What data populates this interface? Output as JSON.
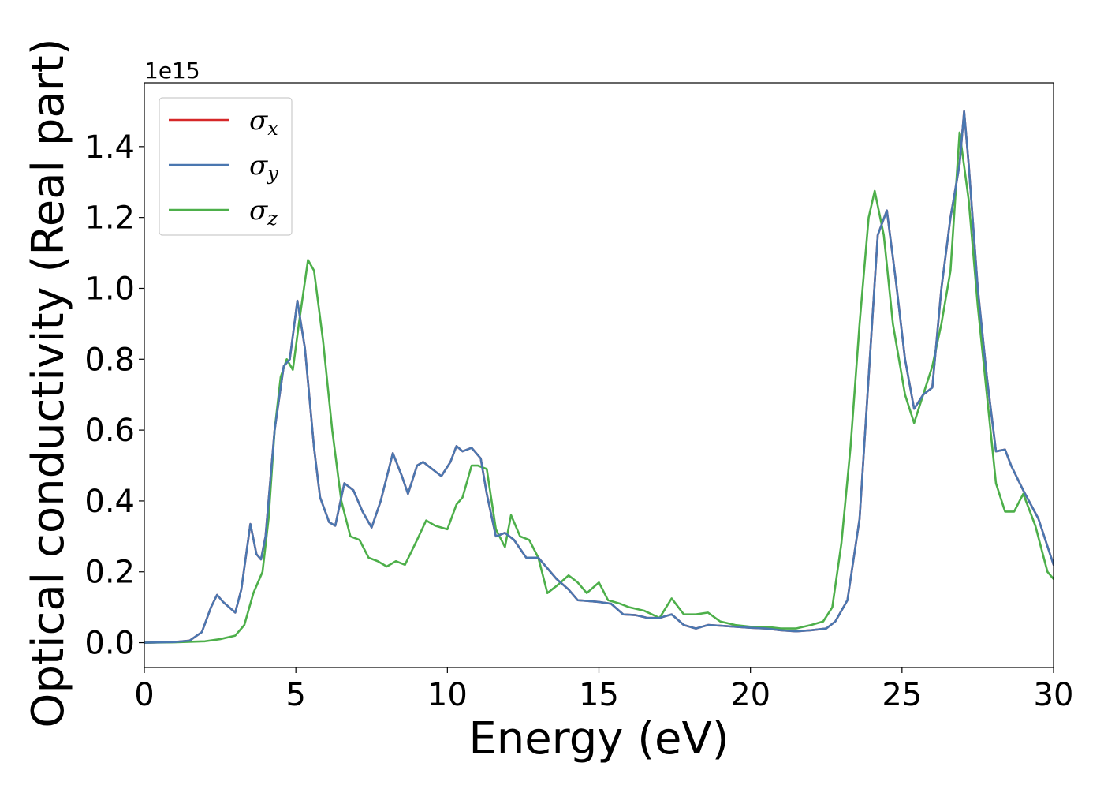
{
  "chart_data": {
    "type": "line",
    "xlabel": "Energy (eV)",
    "ylabel": "Optical conductivity (Real part)",
    "y_offset_label": "1e15",
    "xlim": [
      0,
      30
    ],
    "ylim": [
      -0.07,
      1.58
    ],
    "x_ticks": [
      0,
      5,
      10,
      15,
      20,
      25,
      30
    ],
    "x_tick_labels": [
      "0",
      "5",
      "10",
      "15",
      "20",
      "25",
      "30"
    ],
    "y_ticks": [
      0.0,
      0.2,
      0.4,
      0.6,
      0.8,
      1.0,
      1.2,
      1.4
    ],
    "y_tick_labels": [
      "0.0",
      "0.2",
      "0.4",
      "0.6",
      "0.8",
      "1.0",
      "1.2",
      "1.4"
    ],
    "grid": false,
    "legend_position": "top-left",
    "series": [
      {
        "name": "σx",
        "legend_symbol": "σ",
        "legend_subscript": "x",
        "color": "#d62728",
        "points": [
          [
            0,
            0
          ],
          [
            1,
            0.002
          ],
          [
            1.5,
            0.006
          ],
          [
            1.9,
            0.03
          ],
          [
            2.2,
            0.1
          ],
          [
            2.4,
            0.135
          ],
          [
            2.6,
            0.115
          ],
          [
            3.0,
            0.085
          ],
          [
            3.2,
            0.15
          ],
          [
            3.5,
            0.335
          ],
          [
            3.7,
            0.25
          ],
          [
            3.85,
            0.235
          ],
          [
            4.0,
            0.3
          ],
          [
            4.3,
            0.6
          ],
          [
            4.6,
            0.78
          ],
          [
            4.8,
            0.8
          ],
          [
            5.05,
            0.965
          ],
          [
            5.3,
            0.83
          ],
          [
            5.6,
            0.55
          ],
          [
            5.8,
            0.41
          ],
          [
            6.1,
            0.34
          ],
          [
            6.3,
            0.33
          ],
          [
            6.6,
            0.45
          ],
          [
            6.9,
            0.43
          ],
          [
            7.2,
            0.37
          ],
          [
            7.5,
            0.325
          ],
          [
            7.8,
            0.4
          ],
          [
            8.2,
            0.535
          ],
          [
            8.5,
            0.47
          ],
          [
            8.7,
            0.42
          ],
          [
            9.0,
            0.5
          ],
          [
            9.2,
            0.51
          ],
          [
            9.5,
            0.49
          ],
          [
            9.8,
            0.47
          ],
          [
            10.1,
            0.51
          ],
          [
            10.3,
            0.555
          ],
          [
            10.5,
            0.54
          ],
          [
            10.8,
            0.55
          ],
          [
            11.1,
            0.52
          ],
          [
            11.3,
            0.42
          ],
          [
            11.6,
            0.3
          ],
          [
            11.9,
            0.31
          ],
          [
            12.2,
            0.29
          ],
          [
            12.6,
            0.24
          ],
          [
            13.0,
            0.24
          ],
          [
            13.3,
            0.21
          ],
          [
            13.6,
            0.18
          ],
          [
            14.0,
            0.15
          ],
          [
            14.3,
            0.12
          ],
          [
            14.6,
            0.118
          ],
          [
            15.0,
            0.115
          ],
          [
            15.4,
            0.11
          ],
          [
            15.8,
            0.08
          ],
          [
            16.2,
            0.078
          ],
          [
            16.6,
            0.07
          ],
          [
            17.0,
            0.07
          ],
          [
            17.4,
            0.08
          ],
          [
            17.8,
            0.05
          ],
          [
            18.2,
            0.04
          ],
          [
            18.6,
            0.05
          ],
          [
            19.0,
            0.048
          ],
          [
            19.5,
            0.045
          ],
          [
            20.0,
            0.042
          ],
          [
            20.5,
            0.04
          ],
          [
            21.0,
            0.035
          ],
          [
            21.5,
            0.032
          ],
          [
            22.0,
            0.035
          ],
          [
            22.5,
            0.04
          ],
          [
            22.8,
            0.06
          ],
          [
            23.2,
            0.12
          ],
          [
            23.6,
            0.35
          ],
          [
            23.9,
            0.75
          ],
          [
            24.2,
            1.15
          ],
          [
            24.5,
            1.22
          ],
          [
            24.8,
            1.02
          ],
          [
            25.1,
            0.8
          ],
          [
            25.4,
            0.66
          ],
          [
            25.7,
            0.7
          ],
          [
            26.0,
            0.72
          ],
          [
            26.3,
            1.0
          ],
          [
            26.6,
            1.2
          ],
          [
            26.9,
            1.35
          ],
          [
            27.05,
            1.5
          ],
          [
            27.2,
            1.35
          ],
          [
            27.5,
            1.0
          ],
          [
            27.8,
            0.75
          ],
          [
            28.1,
            0.54
          ],
          [
            28.4,
            0.545
          ],
          [
            28.6,
            0.5
          ],
          [
            29.0,
            0.43
          ],
          [
            29.5,
            0.35
          ],
          [
            30.0,
            0.22
          ]
        ]
      },
      {
        "name": "σy",
        "legend_symbol": "σ",
        "legend_subscript": "y",
        "color": "#4a77b0",
        "points": [
          [
            0,
            0
          ],
          [
            1,
            0.002
          ],
          [
            1.5,
            0.006
          ],
          [
            1.9,
            0.03
          ],
          [
            2.2,
            0.1
          ],
          [
            2.4,
            0.135
          ],
          [
            2.6,
            0.115
          ],
          [
            3.0,
            0.085
          ],
          [
            3.2,
            0.15
          ],
          [
            3.5,
            0.335
          ],
          [
            3.7,
            0.25
          ],
          [
            3.85,
            0.235
          ],
          [
            4.0,
            0.3
          ],
          [
            4.3,
            0.6
          ],
          [
            4.6,
            0.78
          ],
          [
            4.8,
            0.8
          ],
          [
            5.05,
            0.965
          ],
          [
            5.3,
            0.83
          ],
          [
            5.6,
            0.55
          ],
          [
            5.8,
            0.41
          ],
          [
            6.1,
            0.34
          ],
          [
            6.3,
            0.33
          ],
          [
            6.6,
            0.45
          ],
          [
            6.9,
            0.43
          ],
          [
            7.2,
            0.37
          ],
          [
            7.5,
            0.325
          ],
          [
            7.8,
            0.4
          ],
          [
            8.2,
            0.535
          ],
          [
            8.5,
            0.47
          ],
          [
            8.7,
            0.42
          ],
          [
            9.0,
            0.5
          ],
          [
            9.2,
            0.51
          ],
          [
            9.5,
            0.49
          ],
          [
            9.8,
            0.47
          ],
          [
            10.1,
            0.51
          ],
          [
            10.3,
            0.555
          ],
          [
            10.5,
            0.54
          ],
          [
            10.8,
            0.55
          ],
          [
            11.1,
            0.52
          ],
          [
            11.3,
            0.42
          ],
          [
            11.6,
            0.3
          ],
          [
            11.9,
            0.31
          ],
          [
            12.2,
            0.29
          ],
          [
            12.6,
            0.24
          ],
          [
            13.0,
            0.24
          ],
          [
            13.3,
            0.21
          ],
          [
            13.6,
            0.18
          ],
          [
            14.0,
            0.15
          ],
          [
            14.3,
            0.12
          ],
          [
            14.6,
            0.118
          ],
          [
            15.0,
            0.115
          ],
          [
            15.4,
            0.11
          ],
          [
            15.8,
            0.08
          ],
          [
            16.2,
            0.078
          ],
          [
            16.6,
            0.07
          ],
          [
            17.0,
            0.07
          ],
          [
            17.4,
            0.08
          ],
          [
            17.8,
            0.05
          ],
          [
            18.2,
            0.04
          ],
          [
            18.6,
            0.05
          ],
          [
            19.0,
            0.048
          ],
          [
            19.5,
            0.045
          ],
          [
            20.0,
            0.042
          ],
          [
            20.5,
            0.04
          ],
          [
            21.0,
            0.035
          ],
          [
            21.5,
            0.032
          ],
          [
            22.0,
            0.035
          ],
          [
            22.5,
            0.04
          ],
          [
            22.8,
            0.06
          ],
          [
            23.2,
            0.12
          ],
          [
            23.6,
            0.35
          ],
          [
            23.9,
            0.75
          ],
          [
            24.2,
            1.15
          ],
          [
            24.5,
            1.22
          ],
          [
            24.8,
            1.02
          ],
          [
            25.1,
            0.8
          ],
          [
            25.4,
            0.66
          ],
          [
            25.7,
            0.7
          ],
          [
            26.0,
            0.72
          ],
          [
            26.3,
            1.0
          ],
          [
            26.6,
            1.2
          ],
          [
            26.9,
            1.35
          ],
          [
            27.05,
            1.5
          ],
          [
            27.2,
            1.35
          ],
          [
            27.5,
            1.0
          ],
          [
            27.8,
            0.75
          ],
          [
            28.1,
            0.54
          ],
          [
            28.4,
            0.545
          ],
          [
            28.6,
            0.5
          ],
          [
            29.0,
            0.43
          ],
          [
            29.5,
            0.35
          ],
          [
            30.0,
            0.22
          ]
        ]
      },
      {
        "name": "σz",
        "legend_symbol": "σ",
        "legend_subscript": "z",
        "color": "#4daf4a",
        "points": [
          [
            0,
            0
          ],
          [
            1,
            0.001
          ],
          [
            2,
            0.004
          ],
          [
            2.5,
            0.01
          ],
          [
            3.0,
            0.02
          ],
          [
            3.3,
            0.05
          ],
          [
            3.6,
            0.14
          ],
          [
            3.9,
            0.2
          ],
          [
            4.1,
            0.35
          ],
          [
            4.3,
            0.6
          ],
          [
            4.5,
            0.75
          ],
          [
            4.7,
            0.8
          ],
          [
            4.9,
            0.77
          ],
          [
            5.1,
            0.9
          ],
          [
            5.4,
            1.08
          ],
          [
            5.6,
            1.05
          ],
          [
            5.9,
            0.85
          ],
          [
            6.2,
            0.6
          ],
          [
            6.5,
            0.4
          ],
          [
            6.8,
            0.3
          ],
          [
            7.1,
            0.29
          ],
          [
            7.4,
            0.24
          ],
          [
            7.7,
            0.23
          ],
          [
            8.0,
            0.215
          ],
          [
            8.3,
            0.23
          ],
          [
            8.6,
            0.22
          ],
          [
            9.0,
            0.29
          ],
          [
            9.3,
            0.345
          ],
          [
            9.6,
            0.33
          ],
          [
            10.0,
            0.32
          ],
          [
            10.3,
            0.39
          ],
          [
            10.5,
            0.41
          ],
          [
            10.8,
            0.5
          ],
          [
            11.0,
            0.5
          ],
          [
            11.3,
            0.49
          ],
          [
            11.6,
            0.32
          ],
          [
            11.9,
            0.27
          ],
          [
            12.1,
            0.36
          ],
          [
            12.4,
            0.3
          ],
          [
            12.7,
            0.29
          ],
          [
            13.0,
            0.24
          ],
          [
            13.3,
            0.14
          ],
          [
            13.6,
            0.16
          ],
          [
            14.0,
            0.19
          ],
          [
            14.3,
            0.17
          ],
          [
            14.6,
            0.14
          ],
          [
            15.0,
            0.17
          ],
          [
            15.3,
            0.12
          ],
          [
            15.7,
            0.11
          ],
          [
            16.0,
            0.1
          ],
          [
            16.5,
            0.09
          ],
          [
            17.0,
            0.07
          ],
          [
            17.4,
            0.125
          ],
          [
            17.8,
            0.08
          ],
          [
            18.2,
            0.08
          ],
          [
            18.6,
            0.085
          ],
          [
            19.0,
            0.06
          ],
          [
            19.5,
            0.05
          ],
          [
            20.0,
            0.045
          ],
          [
            20.5,
            0.045
          ],
          [
            21.0,
            0.04
          ],
          [
            21.5,
            0.04
          ],
          [
            22.0,
            0.05
          ],
          [
            22.4,
            0.06
          ],
          [
            22.7,
            0.1
          ],
          [
            23.0,
            0.28
          ],
          [
            23.3,
            0.55
          ],
          [
            23.6,
            0.9
          ],
          [
            23.9,
            1.2
          ],
          [
            24.1,
            1.275
          ],
          [
            24.4,
            1.15
          ],
          [
            24.7,
            0.9
          ],
          [
            25.1,
            0.7
          ],
          [
            25.4,
            0.62
          ],
          [
            25.7,
            0.7
          ],
          [
            26.0,
            0.78
          ],
          [
            26.3,
            0.9
          ],
          [
            26.6,
            1.05
          ],
          [
            26.9,
            1.44
          ],
          [
            27.2,
            1.25
          ],
          [
            27.5,
            0.95
          ],
          [
            27.8,
            0.7
          ],
          [
            28.1,
            0.45
          ],
          [
            28.4,
            0.37
          ],
          [
            28.7,
            0.37
          ],
          [
            29.0,
            0.42
          ],
          [
            29.4,
            0.33
          ],
          [
            29.8,
            0.2
          ],
          [
            30.0,
            0.18
          ]
        ]
      }
    ]
  }
}
